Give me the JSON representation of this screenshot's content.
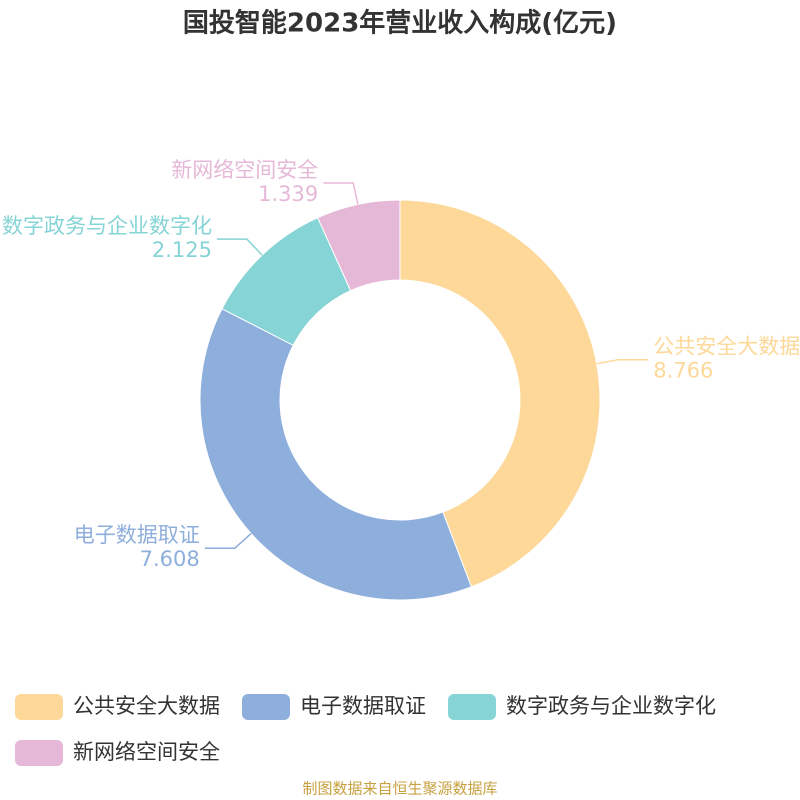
{
  "chart_data": {
    "type": "donut",
    "title": "国投智能2023年营业收入构成(亿元)",
    "categories": [
      "公共安全大数据",
      "电子数据取证",
      "数字政务与企业数字化",
      "新网络空间安全"
    ],
    "values": [
      8.766,
      7.608,
      2.125,
      1.339
    ],
    "colors": [
      "#fdd899",
      "#8eaedb",
      "#86d4d6",
      "#e6b8d8"
    ],
    "source": "制图数据来自恒生聚源数据库"
  }
}
